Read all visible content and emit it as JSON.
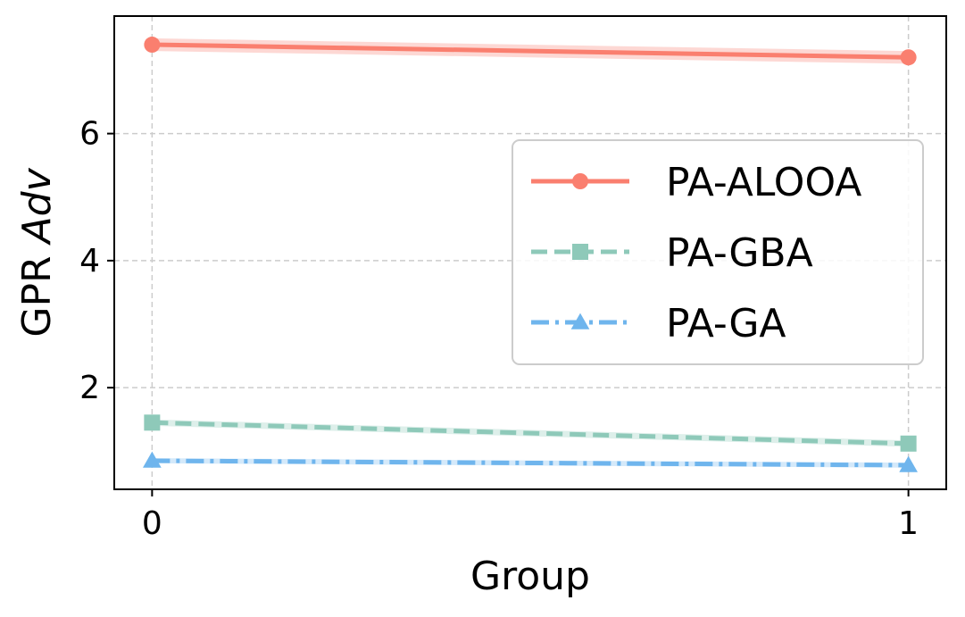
{
  "chart_data": {
    "type": "line",
    "title": "",
    "xlabel": "Group",
    "ylabel_prefix": "GPR ",
    "ylabel_italic": "Adv",
    "x": [
      0,
      1
    ],
    "x_tick_labels": [
      "0",
      "1"
    ],
    "xlim": [
      -0.05,
      1.05
    ],
    "y_ticks": [
      2,
      4,
      6
    ],
    "y_tick_labels": [
      "2",
      "4",
      "6"
    ],
    "ylim": [
      0.4,
      7.85
    ],
    "grid": true,
    "legend_position": "center-right",
    "series": [
      {
        "name": "PA-ALOOA",
        "values": [
          7.4,
          7.2
        ],
        "band": [
          0.1,
          0.1
        ],
        "color": "#fa7f6f",
        "line_style": "solid",
        "marker": "circle"
      },
      {
        "name": "PA-GBA",
        "values": [
          1.45,
          1.12
        ],
        "band": [
          0.05,
          0.05
        ],
        "color": "#8ec9b9",
        "line_style": "dashed",
        "marker": "square"
      },
      {
        "name": "PA-GA",
        "values": [
          0.85,
          0.78
        ],
        "band": [
          0.04,
          0.04
        ],
        "color": "#6fb5ed",
        "line_style": "dashdot",
        "marker": "triangle"
      }
    ]
  }
}
